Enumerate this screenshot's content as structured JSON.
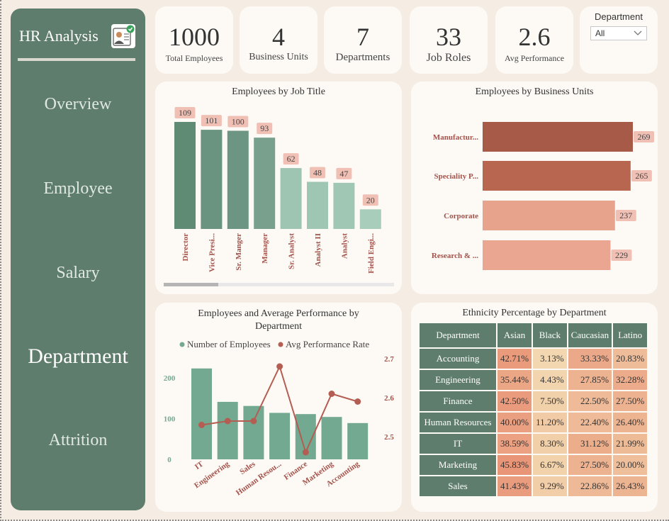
{
  "sidebar": {
    "title": "HR Analysis",
    "nav": [
      "Overview",
      "Employee",
      "Salary",
      "Department",
      "Attrition"
    ]
  },
  "kpis": [
    {
      "value": "1000",
      "label": "Total Employees"
    },
    {
      "value": "4",
      "label": "Business Units"
    },
    {
      "value": "7",
      "label": "Departments"
    },
    {
      "value": "33",
      "label": "Job Roles"
    },
    {
      "value": "2.6",
      "label": "Avg Performance"
    }
  ],
  "filter": {
    "label": "Department",
    "value": "All"
  },
  "colors": {
    "sidebar": "#5f7d6c",
    "bg": "#f5ede4",
    "card": "#fdfaf6",
    "label_badge": "#f1c0b5"
  },
  "chart_data": [
    {
      "type": "bar",
      "title": "Employees by Job Title",
      "categories": [
        "Director",
        "Vice Presi...",
        "Sr. Manger",
        "Manager",
        "Sr. Analyst",
        "Analyst II",
        "Analyst",
        "Field Engi..."
      ],
      "values": [
        109,
        101,
        100,
        93,
        62,
        48,
        47,
        20
      ]
    },
    {
      "type": "bar",
      "title": "Employees by Business Units",
      "orientation": "horizontal",
      "categories": [
        "Manufactur...",
        "Speciality P...",
        "Corporate",
        "Research & ..."
      ],
      "values": [
        269,
        265,
        237,
        229
      ]
    },
    {
      "type": "bar",
      "title": "Employees and Average Performance by Department",
      "legend": [
        "Number of Employees",
        "Avg Performance Rate"
      ],
      "categories": [
        "IT",
        "Engineering",
        "Sales",
        "Human Resou...",
        "Finance",
        "Marketing",
        "Accounting"
      ],
      "series": [
        {
          "name": "Number of Employees",
          "type": "bar",
          "values": [
            223,
            141,
            131,
            114,
            111,
            104,
            89
          ]
        },
        {
          "name": "Avg Performance Rate",
          "type": "line",
          "values": [
            2.53,
            2.54,
            2.54,
            2.68,
            2.46,
            2.61,
            2.59
          ]
        }
      ],
      "y_ticks": [
        "0",
        "100",
        "200"
      ],
      "y2_ticks": [
        "2.5",
        "2.6",
        "2.7"
      ]
    },
    {
      "type": "table",
      "title": "Ethnicity Percentage by Department",
      "columns": [
        "Department",
        "Asian",
        "Black",
        "Caucasian",
        "Latino"
      ],
      "rows": [
        [
          "Accounting",
          "42.71%",
          "3.13%",
          "33.33%",
          "20.83%"
        ],
        [
          "Engineering",
          "35.44%",
          "4.43%",
          "27.85%",
          "32.28%"
        ],
        [
          "Finance",
          "42.50%",
          "7.50%",
          "22.50%",
          "27.50%"
        ],
        [
          "Human Resources",
          "40.00%",
          "11.20%",
          "22.40%",
          "26.40%"
        ],
        [
          "IT",
          "38.59%",
          "8.30%",
          "31.12%",
          "21.99%"
        ],
        [
          "Marketing",
          "45.83%",
          "6.67%",
          "27.50%",
          "20.00%"
        ],
        [
          "Sales",
          "41.43%",
          "9.29%",
          "22.86%",
          "26.43%"
        ]
      ]
    }
  ]
}
